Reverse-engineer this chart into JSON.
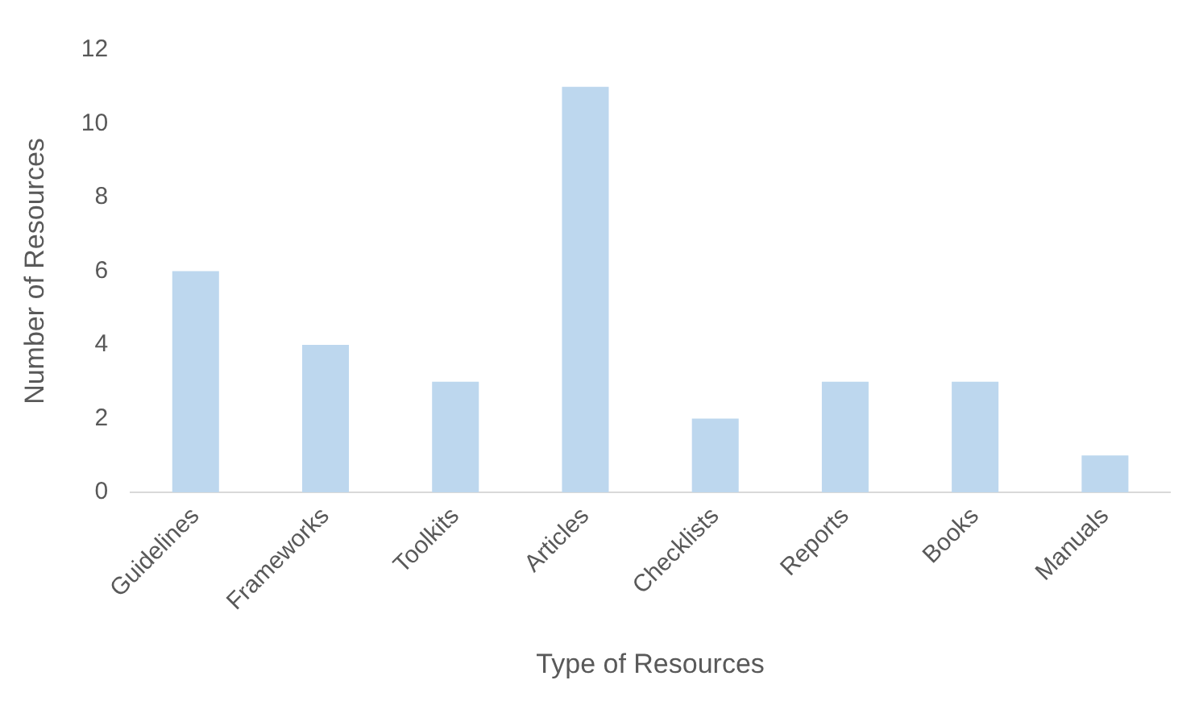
{
  "chart_data": {
    "type": "bar",
    "xlabel": "Type of Resources",
    "ylabel": "Number of Resources",
    "categories": [
      "Guidelines",
      "Frameworks",
      "Toolkits",
      "Articles",
      "Checklists",
      "Reports",
      "Books",
      "Manuals"
    ],
    "values": [
      6,
      4,
      3,
      11,
      2,
      3,
      3,
      1
    ],
    "color": "#bdd7ee",
    "ylim": [
      0,
      12
    ],
    "yticks": [
      0,
      2,
      4,
      6,
      8,
      10,
      12
    ],
    "grid": false,
    "legend": false
  }
}
